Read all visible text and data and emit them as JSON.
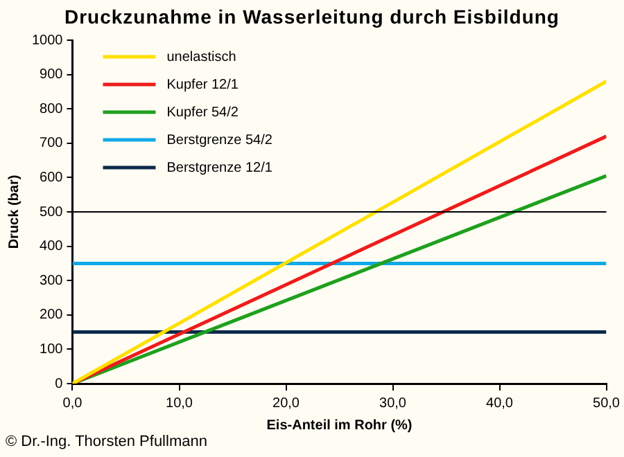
{
  "chart_data": {
    "type": "line",
    "title": "Druckzunahme in Wasserleitung durch Eisbildung",
    "xlabel": "Eis-Anteil im Rohr (%)",
    "ylabel": "Druck (bar)",
    "x": [
      0,
      50
    ],
    "series": [
      {
        "name": "unelastisch",
        "color": "#ffe000",
        "values": [
          0,
          880
        ]
      },
      {
        "name": "Kupfer 12/1",
        "color": "#ee1c1c",
        "values": [
          0,
          720
        ]
      },
      {
        "name": "Kupfer 54/2",
        "color": "#1fa01f",
        "values": [
          0,
          605
        ]
      },
      {
        "name": "Berstgrenze 54/2",
        "color": "#10a8e8",
        "values": [
          350,
          350
        ]
      },
      {
        "name": "Berstgrenze 12/1",
        "color": "#0c2a4a",
        "values": [
          150,
          150
        ]
      }
    ],
    "xlim": [
      0,
      50
    ],
    "xticks": [
      {
        "value": 0,
        "label": "0,0"
      },
      {
        "value": 10,
        "label": "10,0"
      },
      {
        "value": 20,
        "label": "20,0"
      },
      {
        "value": 30,
        "label": "30,0"
      },
      {
        "value": 40,
        "label": "40,0"
      },
      {
        "value": 50,
        "label": "50,0"
      }
    ],
    "ylim": [
      0,
      1000
    ],
    "yticks": [
      0,
      100,
      200,
      300,
      400,
      500,
      600,
      700,
      800,
      900,
      1000
    ],
    "ref_lines": [
      {
        "axis": "y",
        "value": 500,
        "color": "#000000"
      }
    ],
    "grid": false,
    "legend": "top left",
    "marker": "none",
    "line_style": "solid",
    "annotations": [
      "© Dr.-Ing. Thorsten Pfullmann"
    ]
  }
}
